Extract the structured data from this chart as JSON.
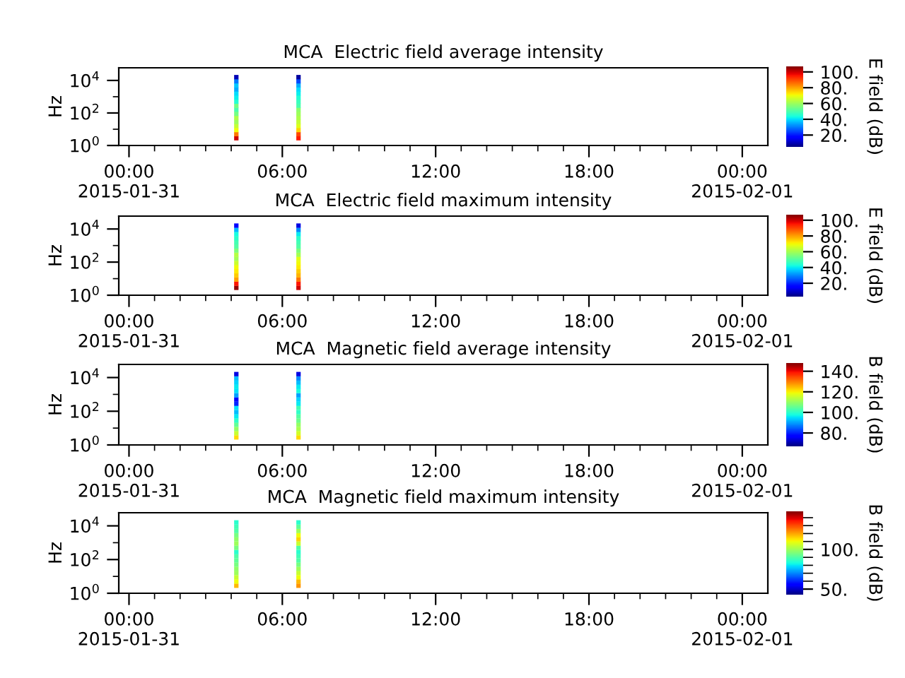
{
  "chart_data": [
    {
      "type": "scatter",
      "title": "MCA  Electric field average intensity",
      "ylabel": "Hz",
      "clabel": "E field (dB)",
      "marker": "square",
      "log": "y",
      "xlim": [
        "2015-01-30T23:36",
        "2015-02-01T01:00"
      ],
      "xticks": [
        {
          "value": "2015-01-31T00:00",
          "label": "00:00\n2015-01-31"
        },
        {
          "value": "2015-01-31T06:00",
          "label": "06:00"
        },
        {
          "value": "2015-01-31T12:00",
          "label": "12:00"
        },
        {
          "value": "2015-01-31T18:00",
          "label": "18:00"
        },
        {
          "value": "2015-02-01T00:00",
          "label": "00:00\n2015-02-01"
        },
        {
          "value": "2015-01-31T01:00",
          "label": null
        },
        {
          "value": "2015-01-31T02:00",
          "label": null
        },
        {
          "value": "2015-01-31T03:00",
          "label": null
        },
        {
          "value": "2015-01-31T04:00",
          "label": null
        },
        {
          "value": "2015-01-31T05:00",
          "label": null
        },
        {
          "value": "2015-01-31T07:00",
          "label": null
        },
        {
          "value": "2015-01-31T08:00",
          "label": null
        },
        {
          "value": "2015-01-31T09:00",
          "label": null
        },
        {
          "value": "2015-01-31T10:00",
          "label": null
        },
        {
          "value": "2015-01-31T11:00",
          "label": null
        },
        {
          "value": "2015-01-31T13:00",
          "label": null
        },
        {
          "value": "2015-01-31T14:00",
          "label": null
        },
        {
          "value": "2015-01-31T15:00",
          "label": null
        },
        {
          "value": "2015-01-31T16:00",
          "label": null
        },
        {
          "value": "2015-01-31T17:00",
          "label": null
        },
        {
          "value": "2015-01-31T19:00",
          "label": null
        },
        {
          "value": "2015-01-31T20:00",
          "label": null
        },
        {
          "value": "2015-01-31T21:00",
          "label": null
        },
        {
          "value": "2015-01-31T22:00",
          "label": null
        },
        {
          "value": "2015-01-31T23:00",
          "label": null
        }
      ],
      "ylim": [
        1,
        60000
      ],
      "yticks": [
        {
          "value": 1,
          "label": "10$^{0}$"
        },
        {
          "value": 100,
          "label": "10$^{2}$"
        },
        {
          "value": 10000,
          "label": "10$^{4}$"
        },
        {
          "value": 10,
          "label": null
        },
        {
          "value": 1000,
          "label": null
        }
      ],
      "clim": [
        5,
        107
      ],
      "cticks": [
        {
          "value": 20,
          "label": "20."
        },
        {
          "value": 40,
          "label": "40."
        },
        {
          "value": 60,
          "label": "60."
        },
        {
          "value": 80,
          "label": "80."
        },
        {
          "value": 100,
          "label": "100."
        }
      ],
      "series": [
        {
          "x": [
            "2015-01-31T04:12",
            "2015-01-31T04:12",
            "2015-01-31T04:12",
            "2015-01-31T04:12",
            "2015-01-31T04:12",
            "2015-01-31T04:12",
            "2015-01-31T04:12",
            "2015-01-31T04:12",
            "2015-01-31T04:12",
            "2015-01-31T04:12",
            "2015-01-31T04:12",
            "2015-01-31T04:12",
            "2015-01-31T04:12",
            "2015-01-31T04:12",
            "2015-01-31T04:12",
            "2015-01-31T04:12",
            "2015-01-31T06:38",
            "2015-01-31T06:38",
            "2015-01-31T06:38",
            "2015-01-31T06:38",
            "2015-01-31T06:38",
            "2015-01-31T06:38",
            "2015-01-31T06:38",
            "2015-01-31T06:38",
            "2015-01-31T06:38",
            "2015-01-31T06:38",
            "2015-01-31T06:38",
            "2015-01-31T06:38",
            "2015-01-31T06:38",
            "2015-01-31T06:38",
            "2015-01-31T06:38",
            "2015-01-31T06:38"
          ],
          "values": [
            2.8,
            5,
            8.9,
            16,
            28,
            50,
            89,
            160,
            280,
            500,
            890,
            1600,
            2800,
            5000,
            8900,
            16000,
            2.8,
            5,
            8.9,
            16,
            28,
            50,
            89,
            160,
            280,
            500,
            890,
            1600,
            2800,
            5000,
            8900,
            16000
          ],
          "cvalues": [
            100,
            85,
            70,
            65,
            60,
            62,
            55,
            50,
            55,
            45,
            42,
            40,
            35,
            38,
            30,
            10,
            95,
            90,
            75,
            68,
            65,
            62,
            60,
            58,
            50,
            48,
            45,
            42,
            40,
            35,
            25,
            8
          ]
        }
      ]
    },
    {
      "type": "scatter",
      "title": "MCA  Electric field maximum intensity",
      "ylabel": "Hz",
      "clabel": "E field (dB)",
      "marker": "square",
      "log": "y",
      "xlim": [
        "2015-01-30T23:36",
        "2015-02-01T01:00"
      ],
      "xticks": [
        {
          "value": "2015-01-31T00:00",
          "label": "00:00\n2015-01-31"
        },
        {
          "value": "2015-01-31T06:00",
          "label": "06:00"
        },
        {
          "value": "2015-01-31T12:00",
          "label": "12:00"
        },
        {
          "value": "2015-01-31T18:00",
          "label": "18:00"
        },
        {
          "value": "2015-02-01T00:00",
          "label": "00:00\n2015-02-01"
        },
        {
          "value": "2015-01-31T01:00",
          "label": null
        },
        {
          "value": "2015-01-31T02:00",
          "label": null
        },
        {
          "value": "2015-01-31T03:00",
          "label": null
        },
        {
          "value": "2015-01-31T04:00",
          "label": null
        },
        {
          "value": "2015-01-31T05:00",
          "label": null
        },
        {
          "value": "2015-01-31T07:00",
          "label": null
        },
        {
          "value": "2015-01-31T08:00",
          "label": null
        },
        {
          "value": "2015-01-31T09:00",
          "label": null
        },
        {
          "value": "2015-01-31T10:00",
          "label": null
        },
        {
          "value": "2015-01-31T11:00",
          "label": null
        },
        {
          "value": "2015-01-31T13:00",
          "label": null
        },
        {
          "value": "2015-01-31T14:00",
          "label": null
        },
        {
          "value": "2015-01-31T15:00",
          "label": null
        },
        {
          "value": "2015-01-31T16:00",
          "label": null
        },
        {
          "value": "2015-01-31T17:00",
          "label": null
        },
        {
          "value": "2015-01-31T19:00",
          "label": null
        },
        {
          "value": "2015-01-31T20:00",
          "label": null
        },
        {
          "value": "2015-01-31T21:00",
          "label": null
        },
        {
          "value": "2015-01-31T22:00",
          "label": null
        },
        {
          "value": "2015-01-31T23:00",
          "label": null
        }
      ],
      "ylim": [
        1,
        60000
      ],
      "yticks": [
        {
          "value": 1,
          "label": "10$^{0}$"
        },
        {
          "value": 100,
          "label": "10$^{2}$"
        },
        {
          "value": 10000,
          "label": "10$^{4}$"
        },
        {
          "value": 10,
          "label": null
        },
        {
          "value": 1000,
          "label": null
        }
      ],
      "clim": [
        3,
        107
      ],
      "cticks": [
        {
          "value": 20,
          "label": "20."
        },
        {
          "value": 40,
          "label": "40."
        },
        {
          "value": 60,
          "label": "60."
        },
        {
          "value": 80,
          "label": "80."
        },
        {
          "value": 100,
          "label": "100."
        }
      ],
      "series": [
        {
          "x": [
            "2015-01-31T04:12",
            "2015-01-31T04:12",
            "2015-01-31T04:12",
            "2015-01-31T04:12",
            "2015-01-31T04:12",
            "2015-01-31T04:12",
            "2015-01-31T04:12",
            "2015-01-31T04:12",
            "2015-01-31T04:12",
            "2015-01-31T04:12",
            "2015-01-31T04:12",
            "2015-01-31T04:12",
            "2015-01-31T04:12",
            "2015-01-31T04:12",
            "2015-01-31T04:12",
            "2015-01-31T04:12",
            "2015-01-31T06:38",
            "2015-01-31T06:38",
            "2015-01-31T06:38",
            "2015-01-31T06:38",
            "2015-01-31T06:38",
            "2015-01-31T06:38",
            "2015-01-31T06:38",
            "2015-01-31T06:38",
            "2015-01-31T06:38",
            "2015-01-31T06:38",
            "2015-01-31T06:38",
            "2015-01-31T06:38",
            "2015-01-31T06:38",
            "2015-01-31T06:38",
            "2015-01-31T06:38",
            "2015-01-31T06:38"
          ],
          "values": [
            2.8,
            5,
            8.9,
            16,
            28,
            50,
            89,
            160,
            280,
            500,
            890,
            1600,
            2800,
            5000,
            8900,
            16000,
            2.8,
            5,
            8.9,
            16,
            28,
            50,
            89,
            160,
            280,
            500,
            890,
            1600,
            2800,
            5000,
            8900,
            16000
          ],
          "cvalues": [
            105,
            95,
            80,
            75,
            72,
            70,
            65,
            60,
            62,
            55,
            50,
            48,
            45,
            42,
            35,
            15,
            100,
            95,
            85,
            78,
            75,
            72,
            70,
            68,
            60,
            55,
            50,
            48,
            45,
            40,
            30,
            12
          ]
        }
      ]
    },
    {
      "type": "scatter",
      "title": "MCA  Magnetic field average intensity",
      "ylabel": "Hz",
      "clabel": "B field (dB)",
      "marker": "square",
      "log": "y",
      "xlim": [
        "2015-01-30T23:36",
        "2015-02-01T01:00"
      ],
      "xticks": [
        {
          "value": "2015-01-31T00:00",
          "label": "00:00\n2015-01-31"
        },
        {
          "value": "2015-01-31T06:00",
          "label": "06:00"
        },
        {
          "value": "2015-01-31T12:00",
          "label": "12:00"
        },
        {
          "value": "2015-01-31T18:00",
          "label": "18:00"
        },
        {
          "value": "2015-02-01T00:00",
          "label": "00:00\n2015-02-01"
        },
        {
          "value": "2015-01-31T01:00",
          "label": null
        },
        {
          "value": "2015-01-31T02:00",
          "label": null
        },
        {
          "value": "2015-01-31T03:00",
          "label": null
        },
        {
          "value": "2015-01-31T04:00",
          "label": null
        },
        {
          "value": "2015-01-31T05:00",
          "label": null
        },
        {
          "value": "2015-01-31T07:00",
          "label": null
        },
        {
          "value": "2015-01-31T08:00",
          "label": null
        },
        {
          "value": "2015-01-31T09:00",
          "label": null
        },
        {
          "value": "2015-01-31T10:00",
          "label": null
        },
        {
          "value": "2015-01-31T11:00",
          "label": null
        },
        {
          "value": "2015-01-31T13:00",
          "label": null
        },
        {
          "value": "2015-01-31T14:00",
          "label": null
        },
        {
          "value": "2015-01-31T15:00",
          "label": null
        },
        {
          "value": "2015-01-31T16:00",
          "label": null
        },
        {
          "value": "2015-01-31T17:00",
          "label": null
        },
        {
          "value": "2015-01-31T19:00",
          "label": null
        },
        {
          "value": "2015-01-31T20:00",
          "label": null
        },
        {
          "value": "2015-01-31T21:00",
          "label": null
        },
        {
          "value": "2015-01-31T22:00",
          "label": null
        },
        {
          "value": "2015-01-31T23:00",
          "label": null
        }
      ],
      "ylim": [
        1,
        60000
      ],
      "yticks": [
        {
          "value": 1,
          "label": "10$^{0}$"
        },
        {
          "value": 100,
          "label": "10$^{2}$"
        },
        {
          "value": 10000,
          "label": "10$^{4}$"
        },
        {
          "value": 10,
          "label": null
        },
        {
          "value": 1000,
          "label": null
        }
      ],
      "clim": [
        67,
        148
      ],
      "cticks": [
        {
          "value": 80,
          "label": "80."
        },
        {
          "value": 100,
          "label": "100."
        },
        {
          "value": 120,
          "label": "120."
        },
        {
          "value": 140,
          "label": "140."
        }
      ],
      "series": [
        {
          "x": [
            "2015-01-31T04:12",
            "2015-01-31T04:12",
            "2015-01-31T04:12",
            "2015-01-31T04:12",
            "2015-01-31T04:12",
            "2015-01-31T04:12",
            "2015-01-31T04:12",
            "2015-01-31T04:12",
            "2015-01-31T04:12",
            "2015-01-31T04:12",
            "2015-01-31T04:12",
            "2015-01-31T04:12",
            "2015-01-31T04:12",
            "2015-01-31T04:12",
            "2015-01-31T04:12",
            "2015-01-31T04:12",
            "2015-01-31T06:38",
            "2015-01-31T06:38",
            "2015-01-31T06:38",
            "2015-01-31T06:38",
            "2015-01-31T06:38",
            "2015-01-31T06:38",
            "2015-01-31T06:38",
            "2015-01-31T06:38",
            "2015-01-31T06:38",
            "2015-01-31T06:38",
            "2015-01-31T06:38",
            "2015-01-31T06:38",
            "2015-01-31T06:38",
            "2015-01-31T06:38",
            "2015-01-31T06:38",
            "2015-01-31T06:38"
          ],
          "values": [
            2.8,
            5,
            8.9,
            16,
            28,
            50,
            89,
            160,
            280,
            500,
            890,
            1600,
            2800,
            5000,
            8900,
            16000,
            2.8,
            5,
            8.9,
            16,
            28,
            50,
            89,
            160,
            280,
            500,
            890,
            1600,
            2800,
            5000,
            8900,
            16000
          ],
          "cvalues": [
            122,
            115,
            110,
            105,
            100,
            96,
            92,
            95,
            80,
            76,
            90,
            95,
            96,
            94,
            92,
            74,
            122,
            116,
            112,
            110,
            106,
            104,
            100,
            102,
            96,
            94,
            90,
            98,
            96,
            92,
            88,
            74
          ]
        }
      ]
    },
    {
      "type": "scatter",
      "title": "MCA  Magnetic field maximum intensity",
      "ylabel": "Hz",
      "clabel": "B field (dB)",
      "marker": "square",
      "log": "y",
      "xlim": [
        "2015-01-30T23:36",
        "2015-02-01T01:00"
      ],
      "xticks": [
        {
          "value": "2015-01-31T00:00",
          "label": "00:00\n2015-01-31"
        },
        {
          "value": "2015-01-31T06:00",
          "label": "06:00"
        },
        {
          "value": "2015-01-31T12:00",
          "label": "12:00"
        },
        {
          "value": "2015-01-31T18:00",
          "label": "18:00"
        },
        {
          "value": "2015-02-01T00:00",
          "label": "00:00\n2015-02-01"
        },
        {
          "value": "2015-01-31T01:00",
          "label": null
        },
        {
          "value": "2015-01-31T02:00",
          "label": null
        },
        {
          "value": "2015-01-31T03:00",
          "label": null
        },
        {
          "value": "2015-01-31T04:00",
          "label": null
        },
        {
          "value": "2015-01-31T05:00",
          "label": null
        },
        {
          "value": "2015-01-31T07:00",
          "label": null
        },
        {
          "value": "2015-01-31T08:00",
          "label": null
        },
        {
          "value": "2015-01-31T09:00",
          "label": null
        },
        {
          "value": "2015-01-31T10:00",
          "label": null
        },
        {
          "value": "2015-01-31T11:00",
          "label": null
        },
        {
          "value": "2015-01-31T13:00",
          "label": null
        },
        {
          "value": "2015-01-31T14:00",
          "label": null
        },
        {
          "value": "2015-01-31T15:00",
          "label": null
        },
        {
          "value": "2015-01-31T16:00",
          "label": null
        },
        {
          "value": "2015-01-31T17:00",
          "label": null
        },
        {
          "value": "2015-01-31T19:00",
          "label": null
        },
        {
          "value": "2015-01-31T20:00",
          "label": null
        },
        {
          "value": "2015-01-31T21:00",
          "label": null
        },
        {
          "value": "2015-01-31T22:00",
          "label": null
        },
        {
          "value": "2015-01-31T23:00",
          "label": null
        }
      ],
      "ylim": [
        1,
        60000
      ],
      "yticks": [
        {
          "value": 1,
          "label": "10$^{0}$"
        },
        {
          "value": 100,
          "label": "10$^{2}$"
        },
        {
          "value": 10000,
          "label": "10$^{4}$"
        },
        {
          "value": 10,
          "label": null
        },
        {
          "value": 1000,
          "label": null
        }
      ],
      "clim": [
        43,
        148
      ],
      "cticks": [
        {
          "value": 50,
          "label": "50."
        },
        {
          "value": 100,
          "label": "100."
        },
        {
          "value": 60,
          "label": null
        },
        {
          "value": 70,
          "label": null
        },
        {
          "value": 80,
          "label": null
        },
        {
          "value": 90,
          "label": null
        },
        {
          "value": 110,
          "label": null
        },
        {
          "value": 120,
          "label": null
        },
        {
          "value": 130,
          "label": null
        },
        {
          "value": 140,
          "label": null
        }
      ],
      "series": [
        {
          "x": [
            "2015-01-31T04:12",
            "2015-01-31T04:12",
            "2015-01-31T04:12",
            "2015-01-31T04:12",
            "2015-01-31T04:12",
            "2015-01-31T04:12",
            "2015-01-31T04:12",
            "2015-01-31T04:12",
            "2015-01-31T04:12",
            "2015-01-31T04:12",
            "2015-01-31T04:12",
            "2015-01-31T04:12",
            "2015-01-31T04:12",
            "2015-01-31T04:12",
            "2015-01-31T04:12",
            "2015-01-31T04:12",
            "2015-01-31T06:38",
            "2015-01-31T06:38",
            "2015-01-31T06:38",
            "2015-01-31T06:38",
            "2015-01-31T06:38",
            "2015-01-31T06:38",
            "2015-01-31T06:38",
            "2015-01-31T06:38",
            "2015-01-31T06:38",
            "2015-01-31T06:38",
            "2015-01-31T06:38",
            "2015-01-31T06:38",
            "2015-01-31T06:38",
            "2015-01-31T06:38",
            "2015-01-31T06:38",
            "2015-01-31T06:38"
          ],
          "values": [
            2.8,
            5,
            8.9,
            16,
            28,
            50,
            89,
            160,
            280,
            500,
            890,
            1600,
            2800,
            5000,
            8900,
            16000,
            2.8,
            5,
            8.9,
            16,
            28,
            50,
            89,
            160,
            280,
            500,
            890,
            1600,
            2800,
            5000,
            8900,
            16000
          ],
          "cvalues": [
            118,
            110,
            105,
            100,
            98,
            95,
            92,
            90,
            85,
            95,
            100,
            98,
            95,
            90,
            88,
            85,
            122,
            118,
            110,
            105,
            100,
            95,
            90,
            88,
            85,
            90,
            105,
            115,
            110,
            100,
            92,
            85
          ]
        }
      ]
    }
  ]
}
